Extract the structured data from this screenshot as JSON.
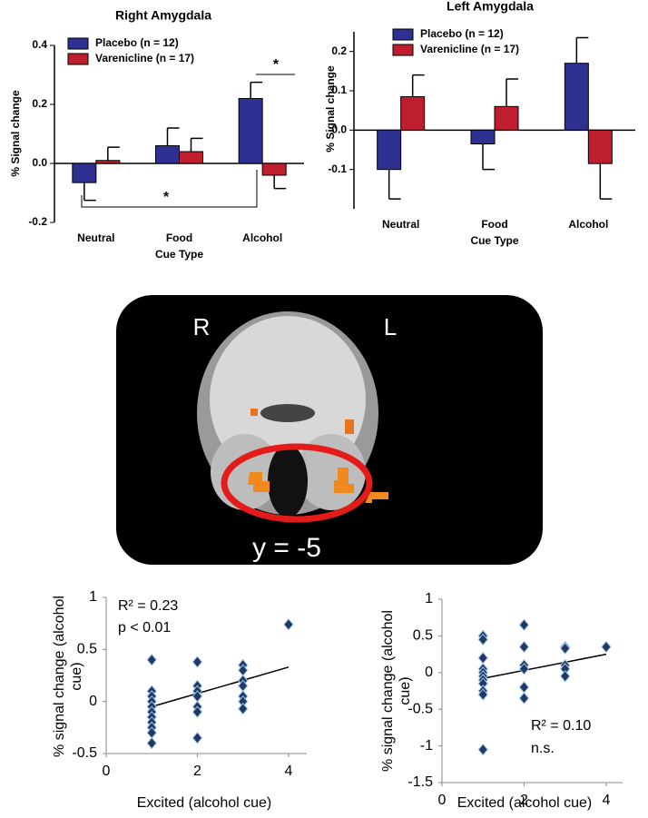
{
  "chart_data": [
    {
      "type": "bar",
      "title": "Right Amygdala",
      "categories": [
        "Neutral",
        "Food",
        "Alcohol"
      ],
      "series": [
        {
          "name": "Placebo (n = 12)",
          "color": "#2e3192",
          "values": [
            -0.065,
            0.06,
            0.22
          ],
          "errors": [
            0.06,
            0.06,
            0.055
          ]
        },
        {
          "name": "Varenicline (n = 17)",
          "color": "#be1e2d",
          "values": [
            0.01,
            0.04,
            -0.04
          ],
          "errors": [
            0.045,
            0.045,
            0.045
          ]
        }
      ],
      "xlabel": "Cue Type",
      "ylabel": "% Signal change",
      "ylim": [
        -0.2,
        0.4
      ],
      "yticks": [
        -0.2,
        {
          "value": 0,
          "label": "0.0"
        },
        0.2,
        0.4
      ],
      "annotations": [
        "*",
        "*"
      ],
      "legend": "upper left"
    },
    {
      "type": "bar",
      "title": "Left Amygdala",
      "categories": [
        "Neutral",
        "Food",
        "Alcohol"
      ],
      "series": [
        {
          "name": "Placebo (n = 12)",
          "color": "#2e3192",
          "values": [
            -0.1,
            -0.035,
            0.17
          ],
          "errors": [
            0.075,
            0.065,
            0.065
          ]
        },
        {
          "name": "Varenicline (n = 17)",
          "color": "#be1e2d",
          "values": [
            0.085,
            0.06,
            -0.085
          ],
          "errors": [
            0.055,
            0.07,
            0.09
          ]
        }
      ],
      "xlabel": "Cue Type",
      "ylabel": "% Signal change",
      "ylim": [
        -0.2,
        0.25
      ],
      "yticks": [
        -0.1,
        {
          "value": 0,
          "label": "0.0"
        },
        0.1,
        0.2
      ],
      "legend": "upper left"
    },
    {
      "type": "scatter",
      "x": [
        1,
        1,
        1,
        1,
        1,
        1,
        1,
        1,
        1,
        1,
        1,
        2,
        2,
        2,
        2,
        2,
        2,
        2,
        3,
        3,
        3,
        3,
        3,
        3,
        3,
        4
      ],
      "y": [
        0.4,
        0.1,
        0.05,
        0,
        -0.05,
        -0.1,
        -0.15,
        -0.2,
        -0.25,
        -0.3,
        -0.4,
        0.38,
        0.15,
        0.1,
        0.05,
        -0.05,
        -0.1,
        -0.35,
        0.35,
        0.3,
        0.2,
        0.15,
        0.05,
        0,
        -0.07,
        0.74
      ],
      "color": "#1f3864",
      "edgecolor": "#9dc3e6",
      "trendline": {
        "x": [
          1,
          4
        ],
        "y": [
          -0.05,
          0.33
        ]
      },
      "annotations": [
        "R² = 0.23",
        "p < 0.01"
      ],
      "xlabel": "Excited (alcohol cue)",
      "ylabel": "% signal change (alcohol cue)",
      "xlim": [
        0,
        4.4
      ],
      "xticks": [
        0,
        2,
        4
      ],
      "ylim": [
        -0.5,
        1
      ],
      "yticks": [
        -0.5,
        0,
        0.5,
        1
      ]
    },
    {
      "type": "scatter",
      "x": [
        1,
        1,
        1,
        1,
        1,
        1,
        1,
        1,
        1,
        1,
        1,
        2,
        2,
        2,
        2,
        2,
        2,
        3,
        3,
        3,
        3,
        3,
        4
      ],
      "y": [
        0.5,
        0.45,
        0.2,
        0.05,
        0,
        -0.05,
        -0.1,
        -0.15,
        -0.25,
        -0.3,
        -1.05,
        0.65,
        0.35,
        0.1,
        0.05,
        -0.2,
        -0.35,
        0.35,
        0.33,
        0.1,
        0.05,
        -0.05,
        0.35
      ],
      "color": "#1f3864",
      "edgecolor": "#9dc3e6",
      "trendline": {
        "x": [
          1,
          4
        ],
        "y": [
          -0.08,
          0.25
        ]
      },
      "annotations": [
        "R² = 0.10",
        "n.s."
      ],
      "xlabel": "Excited (alcohol cue)",
      "ylabel": "% signal change (alcohol cue)",
      "xlim": [
        0,
        4.4
      ],
      "xticks": [
        0,
        2,
        4
      ],
      "ylim": [
        -1.5,
        1
      ],
      "yticks": [
        -1.5,
        -1,
        -0.5,
        0,
        0.5,
        1
      ]
    }
  ],
  "image": {
    "left_label": "R",
    "right_label": "L",
    "caption": "y = -5"
  }
}
